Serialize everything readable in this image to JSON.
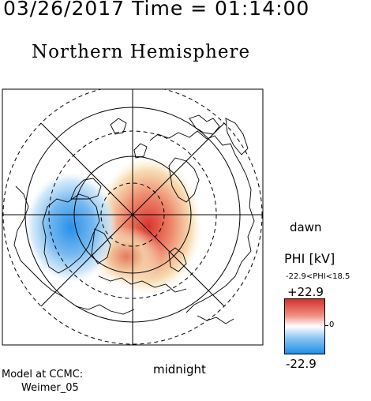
{
  "timestamp": "03/26/2017 Time = 01:14:00",
  "hemisphere": "Northern Hemisphere",
  "labels": {
    "dawn": "dawn",
    "midnight": "midnight"
  },
  "model": {
    "line1": "Model at CCMC:",
    "line2": "Weimer_05"
  },
  "colorbar": {
    "title": "PHI [kV]",
    "range": "-22.9<PHI<18.5",
    "max": "+22.9",
    "zero": "0",
    "min": "-22.9",
    "colors": {
      "positive": "#d2322d",
      "neutral": "#ffffff",
      "negative": "#1f8fe6"
    }
  },
  "map": {
    "projection": "polar stereographic, north pole at center",
    "features": [
      "latitude circles",
      "longitude meridians",
      "coastlines",
      "potential contours"
    ]
  }
}
